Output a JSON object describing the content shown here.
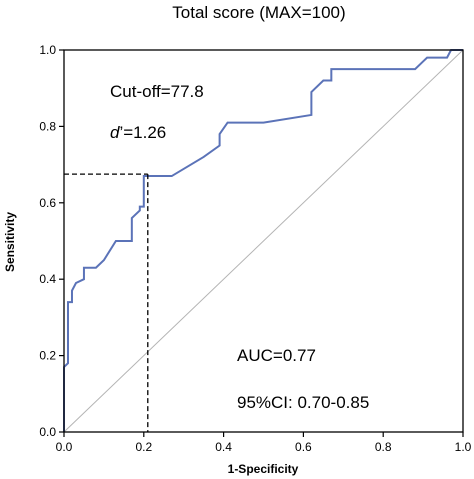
{
  "chart_data": {
    "type": "line",
    "title": "Total score (MAX=100)",
    "xlabel": "1-Specificity",
    "ylabel": "Sensitivity",
    "xlim": [
      0,
      1
    ],
    "ylim": [
      0,
      1
    ],
    "x_ticks": [
      "0.0",
      "0.2",
      "0.4",
      "0.6",
      "0.8",
      "1.0"
    ],
    "y_ticks": [
      "0.0",
      "0.2",
      "0.4",
      "0.6",
      "0.8",
      "1.0"
    ],
    "grid": false,
    "series": [
      {
        "color": "#5b73b8",
        "points": [
          [
            0.0,
            0.0
          ],
          [
            0.0,
            0.17
          ],
          [
            0.01,
            0.18
          ],
          [
            0.01,
            0.34
          ],
          [
            0.02,
            0.34
          ],
          [
            0.02,
            0.37
          ],
          [
            0.03,
            0.39
          ],
          [
            0.05,
            0.4
          ],
          [
            0.05,
            0.43
          ],
          [
            0.08,
            0.43
          ],
          [
            0.1,
            0.45
          ],
          [
            0.13,
            0.5
          ],
          [
            0.17,
            0.5
          ],
          [
            0.17,
            0.56
          ],
          [
            0.19,
            0.58
          ],
          [
            0.19,
            0.59
          ],
          [
            0.2,
            0.59
          ],
          [
            0.2,
            0.67
          ],
          [
            0.27,
            0.67
          ],
          [
            0.35,
            0.72
          ],
          [
            0.39,
            0.75
          ],
          [
            0.39,
            0.78
          ],
          [
            0.41,
            0.81
          ],
          [
            0.5,
            0.81
          ],
          [
            0.62,
            0.83
          ],
          [
            0.62,
            0.89
          ],
          [
            0.65,
            0.92
          ],
          [
            0.67,
            0.92
          ],
          [
            0.67,
            0.95
          ],
          [
            0.88,
            0.95
          ],
          [
            0.9,
            0.97
          ],
          [
            0.91,
            0.98
          ],
          [
            0.96,
            0.98
          ],
          [
            0.97,
            1.0
          ],
          [
            1.0,
            1.0
          ]
        ]
      }
    ],
    "reference_line": {
      "from": [
        0,
        0
      ],
      "to": [
        1,
        1
      ],
      "color": "#b4b4b4"
    },
    "cutoff_marker": {
      "x": 0.21,
      "y": 0.675
    },
    "annotations": [
      {
        "text": "Cut-off=77.8"
      },
      {
        "prefix": "d",
        "text": "’=1.26"
      },
      {
        "text": "AUC=0.77"
      },
      {
        "text": "95%CI: 0.70-0.85"
      }
    ]
  }
}
